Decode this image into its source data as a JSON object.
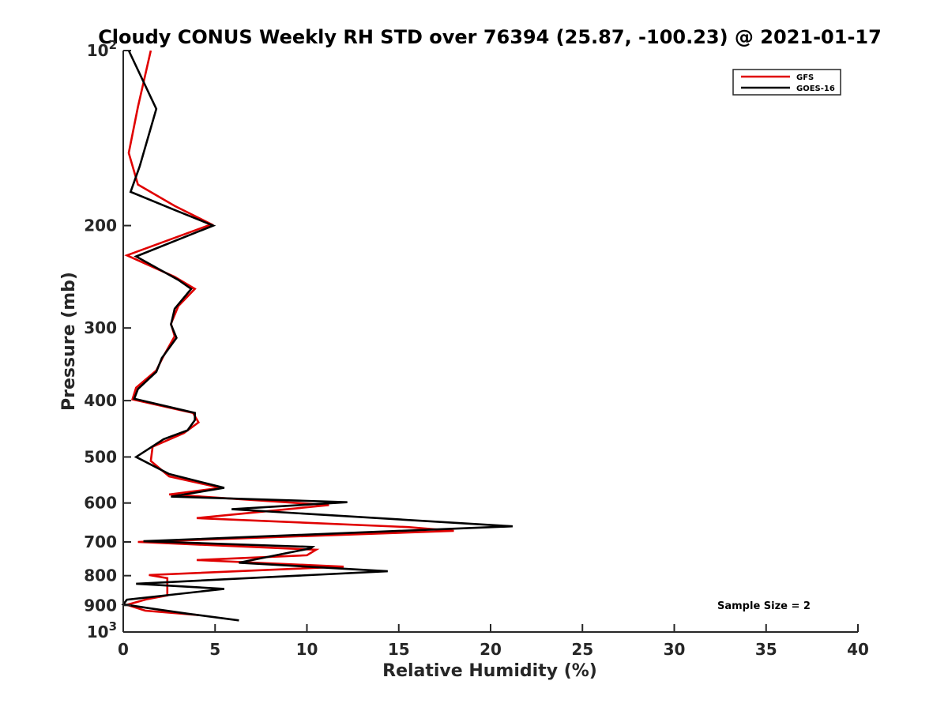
{
  "chart_data": {
    "type": "line",
    "title": "Cloudy CONUS Weekly RH STD over 76394 (25.87, -100.23) @ 2021-01-17",
    "xlabel": "Relative Humidity (%)",
    "ylabel": "Pressure (mb)",
    "xlim": [
      0,
      40
    ],
    "ylim": [
      100,
      1000
    ],
    "y_scale": "log",
    "y_reversed": true,
    "x_ticks": [
      "0",
      "5",
      "10",
      "15",
      "20",
      "25",
      "30",
      "35",
      "40"
    ],
    "y_ticks": [
      {
        "value": 100,
        "base": "10",
        "exp": "2"
      },
      {
        "value": 200,
        "label": "200"
      },
      {
        "value": 300,
        "label": "300"
      },
      {
        "value": 400,
        "label": "400"
      },
      {
        "value": 500,
        "label": "500"
      },
      {
        "value": 600,
        "label": "600"
      },
      {
        "value": 700,
        "label": "700"
      },
      {
        "value": 800,
        "label": "800"
      },
      {
        "value": 900,
        "label": "900"
      },
      {
        "value": 1000,
        "base": "10",
        "exp": "3"
      }
    ],
    "grid": false,
    "legend_position": "top-right",
    "annotation": "Sample Size = 2",
    "series": [
      {
        "name": "GFS",
        "color": "#e00000",
        "points": [
          [
            1.5,
            100
          ],
          [
            0.8,
            125
          ],
          [
            0.3,
            150
          ],
          [
            0.8,
            170
          ],
          [
            2.8,
            185
          ],
          [
            4.8,
            199
          ],
          [
            0.2,
            225
          ],
          [
            2.8,
            245
          ],
          [
            3.9,
            257
          ],
          [
            3.0,
            275
          ],
          [
            2.6,
            295
          ],
          [
            2.8,
            310
          ],
          [
            2.2,
            335
          ],
          [
            1.8,
            355
          ],
          [
            0.7,
            380
          ],
          [
            0.5,
            398
          ],
          [
            3.8,
            420
          ],
          [
            4.1,
            436
          ],
          [
            3.3,
            455
          ],
          [
            1.6,
            480
          ],
          [
            1.5,
            508
          ],
          [
            2.5,
            540
          ],
          [
            5.3,
            565
          ],
          [
            2.5,
            580
          ],
          [
            11.2,
            605
          ],
          [
            4.0,
            637
          ],
          [
            15.5,
            660
          ],
          [
            18.0,
            670
          ],
          [
            0.8,
            700
          ],
          [
            10.5,
            722
          ],
          [
            10.0,
            738
          ],
          [
            4.0,
            752
          ],
          [
            12.0,
            772
          ],
          [
            1.4,
            798
          ],
          [
            2.4,
            808
          ],
          [
            2.4,
            828
          ],
          [
            2.4,
            852
          ],
          [
            2.4,
            865
          ],
          [
            1.3,
            878
          ],
          [
            0.2,
            898
          ],
          [
            1.2,
            919
          ],
          [
            4.1,
            935
          ]
        ]
      },
      {
        "name": "GOES-16",
        "color": "#000000",
        "points": [
          [
            0.3,
            100
          ],
          [
            1.8,
            126
          ],
          [
            0.9,
            158
          ],
          [
            0.4,
            175
          ],
          [
            2.8,
            188
          ],
          [
            4.9,
            200
          ],
          [
            0.7,
            226
          ],
          [
            3.0,
            248
          ],
          [
            3.7,
            257
          ],
          [
            2.8,
            278
          ],
          [
            2.6,
            296
          ],
          [
            2.9,
            312
          ],
          [
            2.1,
            338
          ],
          [
            1.8,
            357
          ],
          [
            0.8,
            382
          ],
          [
            0.6,
            397
          ],
          [
            3.9,
            420
          ],
          [
            3.9,
            432
          ],
          [
            3.5,
            450
          ],
          [
            2.2,
            466
          ],
          [
            0.7,
            500
          ],
          [
            2.5,
            535
          ],
          [
            5.5,
            565
          ],
          [
            2.6,
            585
          ],
          [
            12.2,
            598
          ],
          [
            5.9,
            615
          ],
          [
            21.2,
            658
          ],
          [
            1.1,
            698
          ],
          [
            10.3,
            714
          ],
          [
            10.2,
            718
          ],
          [
            6.3,
            760
          ],
          [
            14.4,
            786
          ],
          [
            0.7,
            826
          ],
          [
            5.5,
            843
          ],
          [
            0.2,
            880
          ],
          [
            0.0,
            896
          ],
          [
            1.5,
            911
          ],
          [
            3.5,
            930
          ],
          [
            6.3,
            955
          ]
        ]
      }
    ]
  }
}
